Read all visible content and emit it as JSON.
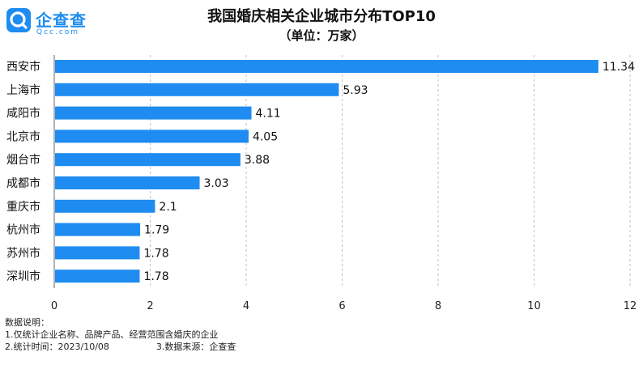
{
  "logo": {
    "name": "企查查",
    "domain": "Qcc.com"
  },
  "chart_data": {
    "type": "bar",
    "orientation": "horizontal",
    "title": "我国婚庆相关企业城市分布TOP10",
    "subtitle": "（单位：万家）",
    "categories": [
      "西安市",
      "上海市",
      "咸阳市",
      "北京市",
      "烟台市",
      "成都市",
      "重庆市",
      "杭州市",
      "苏州市",
      "深圳市"
    ],
    "values": [
      11.34,
      5.93,
      4.11,
      4.05,
      3.88,
      3.03,
      2.1,
      1.79,
      1.78,
      1.78
    ],
    "value_labels": [
      "11.34",
      "5.93",
      "4.11",
      "4.05",
      "3.88",
      "3.03",
      "2.1",
      "1.79",
      "1.78",
      "1.78"
    ],
    "xlim": [
      0,
      12
    ],
    "xticks": [
      "0",
      "2",
      "4",
      "6",
      "8",
      "10",
      "12"
    ],
    "grid": true,
    "bar_color": "#1e8cf0"
  },
  "notes": {
    "heading": "数据说明：",
    "line1": "1.仅统计企业名称、品牌产品、经营范围含婚庆的企业",
    "line2a": "2.统计时间：2023/10/08",
    "line2b": "3.数据来源：企查查"
  }
}
